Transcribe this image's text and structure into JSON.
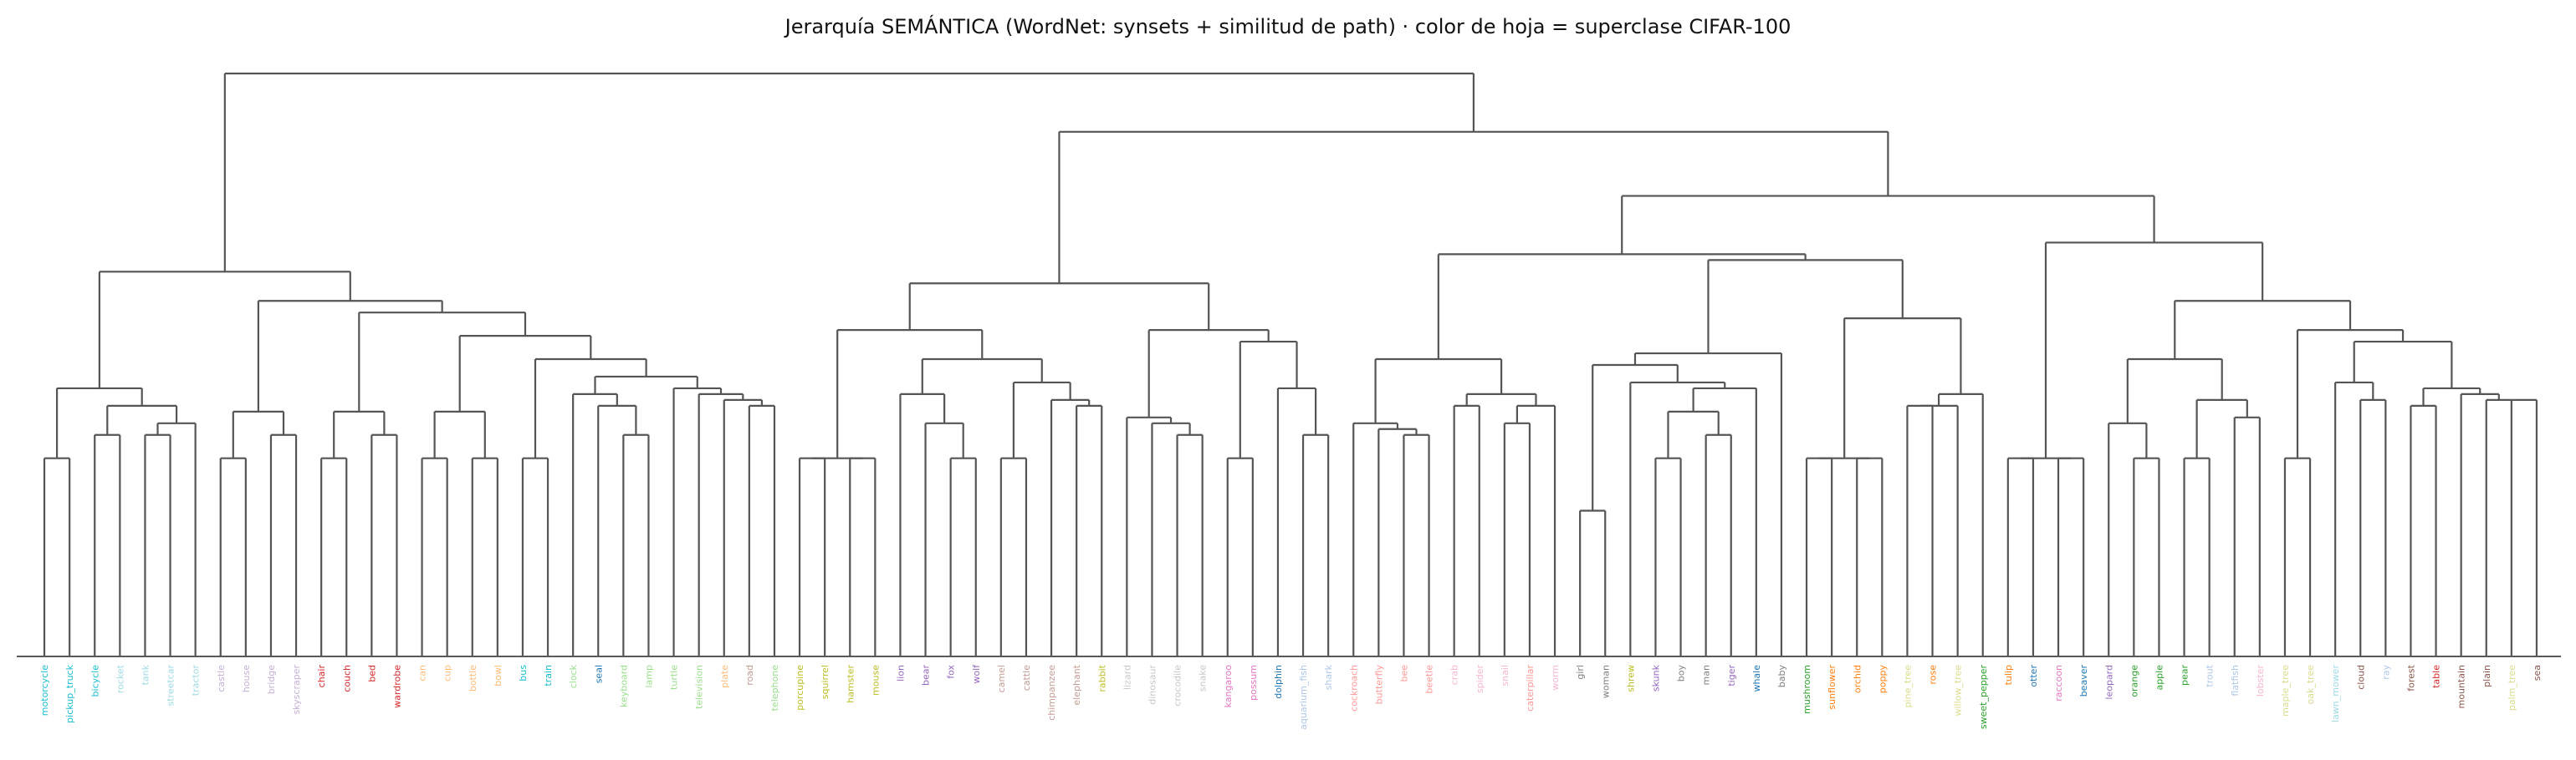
{
  "chart_data": {
    "type": "dendrogram",
    "title": "Jerarquía SEMÁNTICA (WordNet: synsets + similitud de path)  ·  color de hoja = superclase CIFAR-100",
    "line_color": "#555555",
    "leaves": [
      {
        "label": "motorcycle",
        "color": "#17becf"
      },
      {
        "label": "pickup_truck",
        "color": "#17becf"
      },
      {
        "label": "bicycle",
        "color": "#17becf"
      },
      {
        "label": "rocket",
        "color": "#9edae5"
      },
      {
        "label": "tank",
        "color": "#9edae5"
      },
      {
        "label": "streetcar",
        "color": "#9edae5"
      },
      {
        "label": "tractor",
        "color": "#9edae5"
      },
      {
        "label": "castle",
        "color": "#c5b0d5"
      },
      {
        "label": "house",
        "color": "#c5b0d5"
      },
      {
        "label": "bridge",
        "color": "#c5b0d5"
      },
      {
        "label": "skyscraper",
        "color": "#c5b0d5"
      },
      {
        "label": "chair",
        "color": "#d62728"
      },
      {
        "label": "couch",
        "color": "#d62728"
      },
      {
        "label": "bed",
        "color": "#d62728"
      },
      {
        "label": "wardrobe",
        "color": "#d62728"
      },
      {
        "label": "can",
        "color": "#ffbb78"
      },
      {
        "label": "cup",
        "color": "#ffbb78"
      },
      {
        "label": "bottle",
        "color": "#ffbb78"
      },
      {
        "label": "bowl",
        "color": "#ffbb78"
      },
      {
        "label": "bus",
        "color": "#17becf"
      },
      {
        "label": "train",
        "color": "#17becf"
      },
      {
        "label": "clock",
        "color": "#98df8a"
      },
      {
        "label": "seal",
        "color": "#1f77b4"
      },
      {
        "label": "keyboard",
        "color": "#98df8a"
      },
      {
        "label": "lamp",
        "color": "#98df8a"
      },
      {
        "label": "turtle",
        "color": "#98df8a"
      },
      {
        "label": "television",
        "color": "#98df8a"
      },
      {
        "label": "plate",
        "color": "#ffbb78"
      },
      {
        "label": "road",
        "color": "#c49c94"
      },
      {
        "label": "telephone",
        "color": "#98df8a"
      },
      {
        "label": "porcupine",
        "color": "#bcbd22"
      },
      {
        "label": "squirrel",
        "color": "#bcbd22"
      },
      {
        "label": "hamster",
        "color": "#bcbd22"
      },
      {
        "label": "mouse",
        "color": "#bcbd22"
      },
      {
        "label": "lion",
        "color": "#9467bd"
      },
      {
        "label": "bear",
        "color": "#9467bd"
      },
      {
        "label": "fox",
        "color": "#9467bd"
      },
      {
        "label": "wolf",
        "color": "#9467bd"
      },
      {
        "label": "camel",
        "color": "#c49c94"
      },
      {
        "label": "cattle",
        "color": "#c49c94"
      },
      {
        "label": "chimpanzee",
        "color": "#c49c94"
      },
      {
        "label": "elephant",
        "color": "#c49c94"
      },
      {
        "label": "rabbit",
        "color": "#bcbd22"
      },
      {
        "label": "lizard",
        "color": "#c7c7c7"
      },
      {
        "label": "dinosaur",
        "color": "#c7c7c7"
      },
      {
        "label": "crocodile",
        "color": "#c7c7c7"
      },
      {
        "label": "snake",
        "color": "#c7c7c7"
      },
      {
        "label": "kangaroo",
        "color": "#e377c2"
      },
      {
        "label": "possum",
        "color": "#e377c2"
      },
      {
        "label": "dolphin",
        "color": "#1f77b4"
      },
      {
        "label": "aquarium_fish",
        "color": "#aec7e8"
      },
      {
        "label": "shark",
        "color": "#aec7e8"
      },
      {
        "label": "cockroach",
        "color": "#ff9896"
      },
      {
        "label": "butterfly",
        "color": "#ff9896"
      },
      {
        "label": "bee",
        "color": "#ff9896"
      },
      {
        "label": "beetle",
        "color": "#ff9896"
      },
      {
        "label": "crab",
        "color": "#f7b6d2"
      },
      {
        "label": "spider",
        "color": "#f7b6d2"
      },
      {
        "label": "snail",
        "color": "#f7b6d2"
      },
      {
        "label": "caterpillar",
        "color": "#ff9896"
      },
      {
        "label": "worm",
        "color": "#f7b6d2"
      },
      {
        "label": "girl",
        "color": "#7f7f7f"
      },
      {
        "label": "woman",
        "color": "#7f7f7f"
      },
      {
        "label": "shrew",
        "color": "#bcbd22"
      },
      {
        "label": "skunk",
        "color": "#9467bd"
      },
      {
        "label": "boy",
        "color": "#7f7f7f"
      },
      {
        "label": "man",
        "color": "#7f7f7f"
      },
      {
        "label": "tiger",
        "color": "#9467bd"
      },
      {
        "label": "whale",
        "color": "#1f77b4"
      },
      {
        "label": "baby",
        "color": "#7f7f7f"
      },
      {
        "label": "mushroom",
        "color": "#2ca02c"
      },
      {
        "label": "sunflower",
        "color": "#ff7f0e"
      },
      {
        "label": "orchid",
        "color": "#ff7f0e"
      },
      {
        "label": "poppy",
        "color": "#ff7f0e"
      },
      {
        "label": "pine_tree",
        "color": "#dbdb8d"
      },
      {
        "label": "rose",
        "color": "#ff7f0e"
      },
      {
        "label": "willow_tree",
        "color": "#dbdb8d"
      },
      {
        "label": "sweet_pepper",
        "color": "#2ca02c"
      },
      {
        "label": "tulip",
        "color": "#ff7f0e"
      },
      {
        "label": "otter",
        "color": "#1f77b4"
      },
      {
        "label": "raccoon",
        "color": "#e377c2"
      },
      {
        "label": "beaver",
        "color": "#1f77b4"
      },
      {
        "label": "leopard",
        "color": "#9467bd"
      },
      {
        "label": "orange",
        "color": "#2ca02c"
      },
      {
        "label": "apple",
        "color": "#2ca02c"
      },
      {
        "label": "pear",
        "color": "#2ca02c"
      },
      {
        "label": "trout",
        "color": "#aec7e8"
      },
      {
        "label": "flatfish",
        "color": "#aec7e8"
      },
      {
        "label": "lobster",
        "color": "#f7b6d2"
      },
      {
        "label": "maple_tree",
        "color": "#dbdb8d"
      },
      {
        "label": "oak_tree",
        "color": "#dbdb8d"
      },
      {
        "label": "lawn_mower",
        "color": "#9edae5"
      },
      {
        "label": "cloud",
        "color": "#8c564b"
      },
      {
        "label": "ray",
        "color": "#aec7e8"
      },
      {
        "label": "forest",
        "color": "#8c564b"
      },
      {
        "label": "table",
        "color": "#d62728"
      },
      {
        "label": "mountain",
        "color": "#8c564b"
      },
      {
        "label": "plain",
        "color": "#8c564b"
      },
      {
        "label": "palm_tree",
        "color": "#dbdb8d"
      },
      {
        "label": "sea",
        "color": "#8c564b"
      }
    ],
    "merges": [
      [
        0,
        1,
        0.34
      ],
      [
        2,
        3,
        0.38
      ],
      [
        4,
        5,
        0.34
      ],
      [
        6,
        103,
        0.43
      ],
      [
        102,
        104,
        0.47
      ],
      [
        100,
        101,
        0.43
      ],
      [
        105,
        106,
        0.51
      ],
      [
        7,
        8,
        0.34
      ],
      [
        9,
        10,
        0.38
      ],
      [
        108,
        109,
        0.42
      ],
      [
        11,
        12,
        0.34
      ],
      [
        13,
        14,
        0.38
      ],
      [
        111,
        112,
        0.43
      ],
      [
        15,
        16,
        0.34
      ],
      [
        17,
        18,
        0.34
      ],
      [
        114,
        115,
        0.42
      ],
      [
        19,
        20,
        0.34
      ],
      [
        24,
        25,
        0.38
      ],
      [
        23,
        117,
        0.45
      ],
      [
        22,
        118,
        0.46
      ],
      [
        28,
        29,
        0.45
      ],
      [
        27,
        120,
        0.46
      ],
      [
        26,
        121,
        0.465
      ],
      [
        122,
        119,
        0.48
      ],
      [
        123,
        21,
        0.49
      ],
      [
        124,
        116,
        0.52
      ],
      [
        125,
        113,
        0.58
      ],
      [
        126,
        110,
        0.61
      ],
      [
        127,
        107,
        0.62
      ],
      [
        128,
        99,
        0.66
      ],
      [
        30,
        31,
        0.34
      ],
      [
        32,
        33,
        0.34
      ],
      [
        130,
        131,
        0.34
      ],
      [
        36,
        37,
        0.34
      ],
      [
        35,
        133,
        0.42
      ],
      [
        134,
        34,
        0.45
      ],
      [
        40,
        41,
        0.45
      ],
      [
        39,
        136,
        0.47
      ],
      [
        137,
        42,
        0.47
      ],
      [
        138,
        38,
        0.5
      ],
      [
        135,
        139,
        0.56
      ],
      [
        132,
        140,
        0.6
      ],
      [
        44,
        45,
        0.41
      ],
      [
        46,
        147,
        0.38
      ],
      [
        43,
        143,
        0.42
      ],
      [
        47,
        48,
        0.34
      ],
      [
        50,
        51,
        0.38
      ],
      [
        146,
        49,
        0.46
      ],
      [
        145,
        144,
        0.56
      ],
      [
        141,
        148,
        0.64
      ],
      [
        53,
        54,
        0.4
      ],
      [
        55,
        150,
        0.38
      ],
      [
        52,
        151,
        0.41
      ],
      [
        57,
        58,
        0.425
      ],
      [
        59,
        153,
        0.41
      ],
      [
        56,
        154,
        0.44
      ],
      [
        155,
        152,
        0.46
      ],
      [
        61,
        62,
        0.25
      ],
      [
        63,
        64,
        0.38
      ],
      [
        66,
        67,
        0.38
      ],
      [
        65,
        158,
        0.42
      ],
      [
        159,
        157,
        0.44
      ],
      [
        160,
        69,
        0.46
      ],
      [
        161,
        68,
        0.47
      ],
      [
        162,
        156,
        0.49
      ],
      [
        163,
        60,
        0.5
      ],
      [
        164,
        149,
        0.55
      ],
      [
        70,
        71,
        0.34
      ],
      [
        72,
        73,
        0.34
      ],
      [
        165,
        166,
        0.34
      ],
      [
        74,
        75,
        0.41
      ],
      [
        76,
        77,
        0.41
      ],
      [
        168,
        169,
        0.45
      ],
      [
        170,
        167,
        0.57
      ],
      [
        164.5,
        0,
        0
      ],
      [
        78,
        79,
        0.34
      ],
      [
        80,
        81,
        0.34
      ],
      [
        172,
        173,
        0.34
      ],
      [
        82,
        83,
        0.34
      ],
      [
        84,
        85,
        0.34
      ],
      [
        175,
        176,
        0.41
      ],
      [
        86,
        87,
        0.41
      ],
      [
        88,
        89,
        0.41
      ],
      [
        177,
        178,
        0.46
      ],
      [
        179,
        174,
        0.59
      ]
    ]
  }
}
